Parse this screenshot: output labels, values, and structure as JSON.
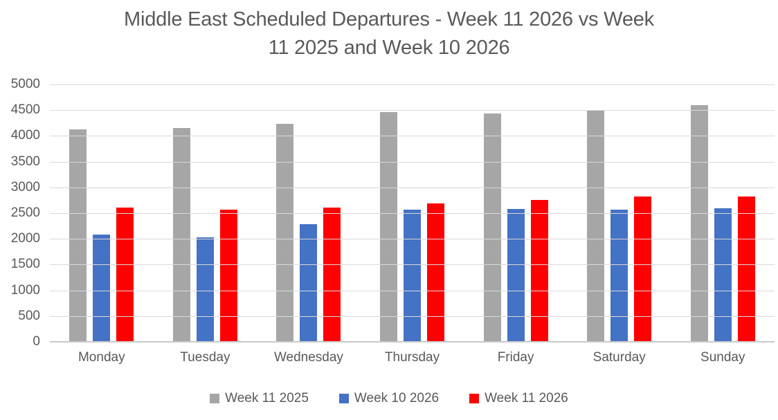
{
  "title_lines": [
    "Middle East Scheduled Departures - Week 11 2026 vs Week",
    "11 2025 and Week 10 2026"
  ],
  "colors": {
    "series_gray": "#A6A6A6",
    "series_blue": "#4472C4",
    "series_red": "#FF0000",
    "gridline": "#D9D9D9",
    "axis_line": "#C9C9C9",
    "text": "#595959"
  },
  "chart_data": {
    "type": "bar",
    "title": "Middle East Scheduled Departures - Week 11 2026 vs Week 11 2025 and Week 10 2026",
    "categories": [
      "Monday",
      "Tuesday",
      "Wednesday",
      "Thursday",
      "Friday",
      "Saturday",
      "Sunday"
    ],
    "series": [
      {
        "name": "Week 11 2025",
        "color": "#A6A6A6",
        "values": [
          4130,
          4155,
          4240,
          4460,
          4440,
          4505,
          4600
        ]
      },
      {
        "name": "Week 10 2026",
        "color": "#4472C4",
        "values": [
          2080,
          2030,
          2280,
          2565,
          2580,
          2570,
          2595
        ]
      },
      {
        "name": "Week 11 2026",
        "color": "#FF0000",
        "values": [
          2605,
          2570,
          2610,
          2690,
          2750,
          2820,
          2825
        ]
      }
    ],
    "xlabel": "",
    "ylabel": "",
    "ylim": [
      0,
      5000
    ],
    "ytick_step": 500,
    "yticks": [
      5000,
      4500,
      4000,
      3500,
      3000,
      2500,
      2000,
      1500,
      1000,
      500,
      0
    ],
    "grid": "horizontal",
    "legend_position": "bottom"
  }
}
